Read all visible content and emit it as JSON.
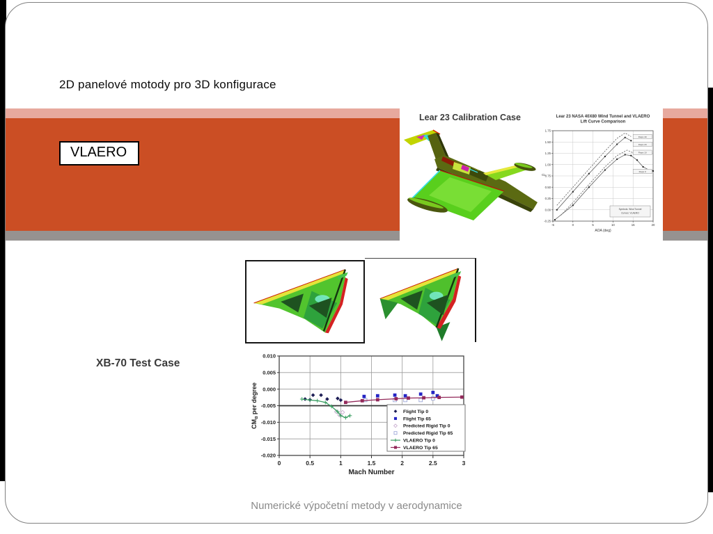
{
  "slide": {
    "title": "2D panelové motody pro 3D konfigurace",
    "vlaero_label": "VLAERO",
    "footer": "Numerické výpočetní metody v aerodynamice",
    "colors": {
      "band_orange": "#cb4e24",
      "band_pink": "#e7a99e",
      "band_gray": "#969290"
    }
  },
  "lear": {
    "caption": "Lear 23 Calibration Case"
  },
  "xb70": {
    "label": "XB-70 Test Case"
  },
  "chart_data": [
    {
      "type": "line",
      "title": "Lear 23 NASA 40X80 Wind Tunnel and VLAERO Lift Curve Comparison",
      "title_lines": [
        "Lear 23 NASA 40X80 Wind Tunnel and VLAERO",
        "Lift Curve Comparison"
      ],
      "xlabel": "AOA (deg)",
      "ylabel": "CL",
      "xlim": [
        -5,
        20
      ],
      "ylim": [
        -0.25,
        1.75
      ],
      "xticks": [
        -5,
        0,
        5,
        10,
        15,
        20
      ],
      "xtick_labels": [
        "-5",
        "0",
        "5",
        "10",
        "15",
        "20"
      ],
      "yticks": [
        1.75,
        1.5,
        1.25,
        1.0,
        0.75,
        0.5,
        0.25,
        0.0,
        -0.25
      ],
      "ytick_labels": [
        "1.75",
        "1.50",
        "1.25",
        "1.00",
        "0.75",
        "0.50",
        "0.25",
        "0.00",
        "-0.25"
      ],
      "grid": true,
      "legend_position": "inside bottom-right",
      "series": [
        {
          "name": "Flaps 40",
          "style": "dashed",
          "x": [
            -4,
            0,
            4,
            8,
            11,
            13,
            14.5
          ],
          "y": [
            0.1,
            0.5,
            0.9,
            1.3,
            1.58,
            1.7,
            1.62
          ]
        },
        {
          "name": "Flaps 20",
          "style": "marker",
          "x": [
            -4,
            0,
            4,
            8,
            11,
            13,
            14.5
          ],
          "y": [
            0.0,
            0.4,
            0.8,
            1.18,
            1.45,
            1.6,
            1.53
          ]
        },
        {
          "name": "Flaps 10",
          "style": "dashed",
          "x": [
            -3,
            0,
            4,
            8,
            11,
            13.5,
            15
          ],
          "y": [
            -0.12,
            0.16,
            0.56,
            0.95,
            1.2,
            1.32,
            1.26
          ]
        },
        {
          "name": "Flaps 0",
          "style": "marker",
          "x": [
            -4.5,
            0,
            4,
            8,
            11,
            13,
            14.5,
            16,
            17.5,
            19,
            20
          ],
          "y": [
            -0.22,
            0.1,
            0.5,
            0.88,
            1.12,
            1.22,
            1.2,
            1.1,
            0.95,
            0.88,
            0.86
          ]
        }
      ],
      "annotations": [
        {
          "label": "Flaps 40",
          "x": 15.0,
          "y": 1.62
        },
        {
          "label": "Flaps 20",
          "x": 15.0,
          "y": 1.45
        },
        {
          "label": "Flaps 10",
          "x": 15.0,
          "y": 1.27
        },
        {
          "label": "Flaps 0",
          "x": 15.0,
          "y": 0.85
        }
      ],
      "legend_note": [
        "Symbols: Wind Tunnel",
        "Curves: VLAERO"
      ]
    },
    {
      "type": "scatter-line",
      "title": "",
      "xlabel": "Mach Number",
      "ylabel": "CMα per degree",
      "xlim": [
        0,
        3
      ],
      "ylim": [
        -0.02,
        0.01
      ],
      "xticks": [
        0,
        0.5,
        1,
        1.5,
        2,
        2.5,
        3
      ],
      "xtick_labels": [
        "0",
        "0.5",
        "1",
        "1.5",
        "2",
        "2.5",
        "3"
      ],
      "yticks": [
        0.01,
        0.005,
        0.0,
        -0.005,
        -0.01,
        -0.015,
        -0.02
      ],
      "ytick_labels": [
        "0.010",
        "0.005",
        "0.000",
        "-0.005",
        "-0.010",
        "-0.015",
        "-0.020"
      ],
      "emphasized_gridline": -0.005,
      "grid": true,
      "legend_position": "inside bottom-right",
      "series": [
        {
          "name": "Flight Tip 0",
          "marker": "diamond",
          "fill": "#1d1d55",
          "color": "#1d1d55",
          "line": false,
          "points": [
            [
              0.42,
              -0.003
            ],
            [
              0.5,
              -0.0032
            ],
            [
              0.55,
              -0.0018
            ],
            [
              0.68,
              -0.0018
            ],
            [
              0.78,
              -0.003
            ],
            [
              0.95,
              -0.0028
            ],
            [
              1.0,
              -0.0033
            ]
          ]
        },
        {
          "name": "Flight Tip 65",
          "marker": "square",
          "fill": "#2525c4",
          "color": "#2525c4",
          "line": false,
          "points": [
            [
              1.38,
              -0.0022
            ],
            [
              1.6,
              -0.002
            ],
            [
              1.88,
              -0.0018
            ],
            [
              2.05,
              -0.002
            ],
            [
              2.3,
              -0.0015
            ],
            [
              2.5,
              -0.001
            ],
            [
              2.57,
              -0.002
            ]
          ]
        },
        {
          "name": "Predicted Rigid Tip 0",
          "marker": "diamond",
          "fill": "open",
          "color": "#c9aed0",
          "line": false,
          "points": [
            [
              0.93,
              -0.0068
            ],
            [
              0.98,
              -0.0078
            ],
            [
              1.03,
              -0.007
            ]
          ]
        },
        {
          "name": "Predicted Rigid Tip 65",
          "marker": "square",
          "fill": "open",
          "color": "#9fa9d8",
          "line": false,
          "points": [
            [
              1.4,
              -0.0033
            ],
            [
              1.88,
              -0.0033
            ],
            [
              2.05,
              -0.0033
            ],
            [
              2.3,
              -0.0033
            ],
            [
              2.5,
              -0.0028
            ]
          ]
        },
        {
          "name": "VLAERO Tip 0",
          "marker": "plus",
          "fill": "#3a9e62",
          "color": "#3a9e62",
          "line": true,
          "points": [
            [
              0.37,
              -0.003
            ],
            [
              0.5,
              -0.0033
            ],
            [
              0.62,
              -0.0035
            ],
            [
              0.75,
              -0.004
            ],
            [
              0.85,
              -0.0052
            ],
            [
              0.95,
              -0.0068
            ],
            [
              1.0,
              -0.008
            ],
            [
              1.08,
              -0.0086
            ],
            [
              1.15,
              -0.008
            ]
          ]
        },
        {
          "name": "VLAERO Tip 65",
          "marker": "square",
          "fill": "#93295a",
          "color": "#93295a",
          "line": true,
          "points": [
            [
              1.08,
              -0.004
            ],
            [
              1.35,
              -0.0035
            ],
            [
              1.6,
              -0.0032
            ],
            [
              1.9,
              -0.0029
            ],
            [
              2.1,
              -0.0027
            ],
            [
              2.35,
              -0.0026
            ],
            [
              2.6,
              -0.0025
            ],
            [
              2.97,
              -0.0024
            ]
          ]
        }
      ]
    }
  ]
}
